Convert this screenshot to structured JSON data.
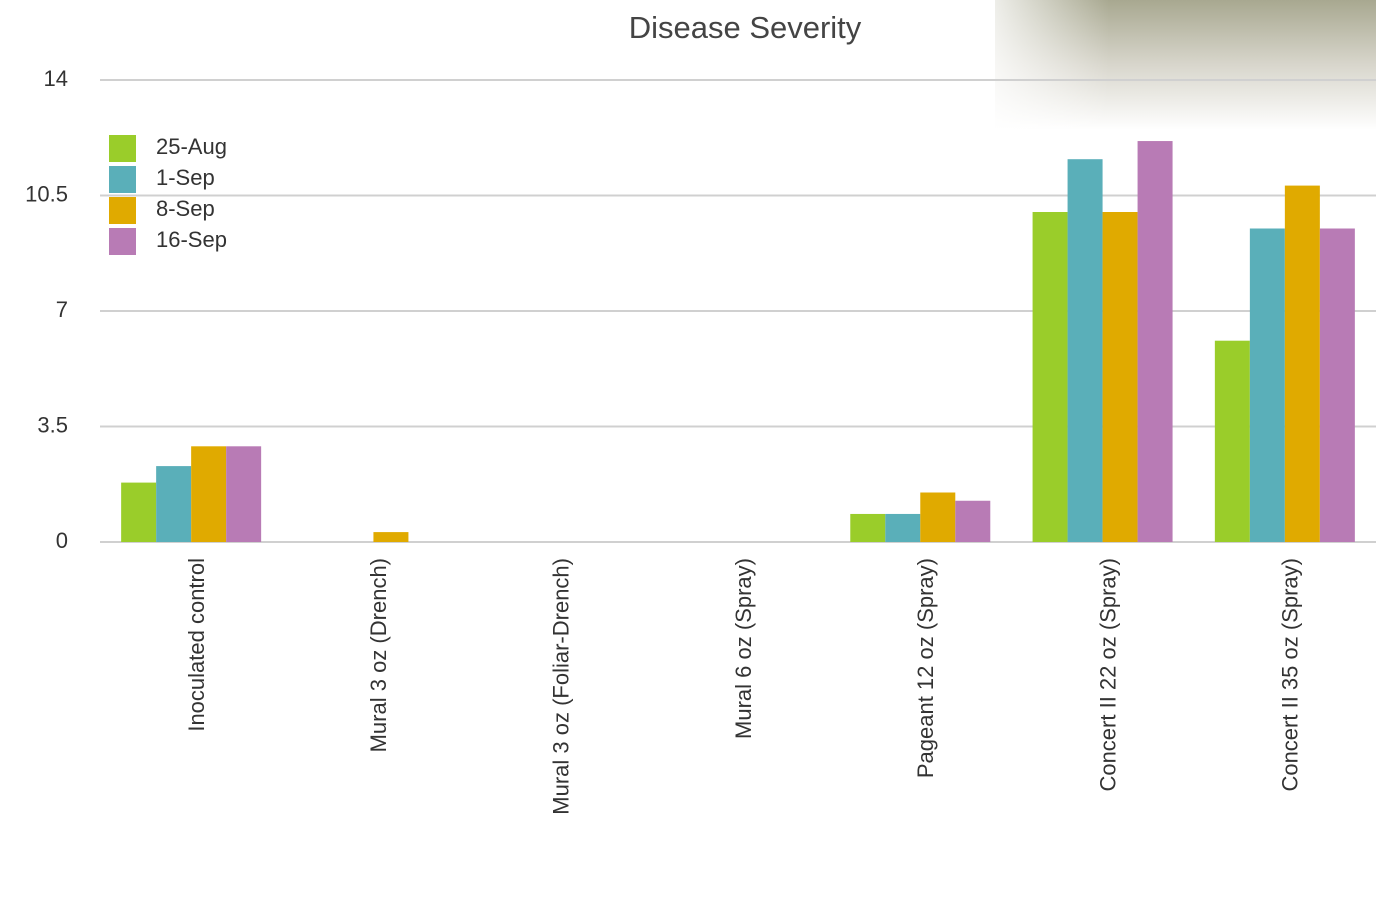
{
  "chart_data": {
    "type": "bar",
    "title": "Disease Severity",
    "categories": [
      "Inoculated control",
      "Mural 3 oz (Drench)",
      "Mural 3 oz (Foliar-Drench)",
      "Mural 6 oz (Spray)",
      "Pageant  12 oz (Spray)",
      "Concert II 22 oz (Spray)",
      "Concert II 35 oz (Spray)"
    ],
    "series": [
      {
        "name": "25-Aug",
        "color": "#9acd2a",
        "values": [
          1.8,
          0,
          0,
          0,
          0.85,
          10,
          6.1
        ]
      },
      {
        "name": "1-Sep",
        "color": "#5aafb9",
        "values": [
          2.3,
          0,
          0,
          0,
          0.85,
          11.6,
          9.5
        ]
      },
      {
        "name": "8-Sep",
        "color": "#e0aa00",
        "values": [
          2.9,
          0.3,
          0,
          0,
          1.5,
          10,
          10.8
        ]
      },
      {
        "name": "16-Sep",
        "color": "#b87bb5",
        "values": [
          2.9,
          0,
          0,
          0,
          1.25,
          12.15,
          9.5
        ]
      }
    ],
    "ylim": [
      0,
      14
    ],
    "yticks": [
      0,
      3.5,
      7,
      10.5,
      14
    ],
    "grid": true,
    "legend": "top-left"
  }
}
